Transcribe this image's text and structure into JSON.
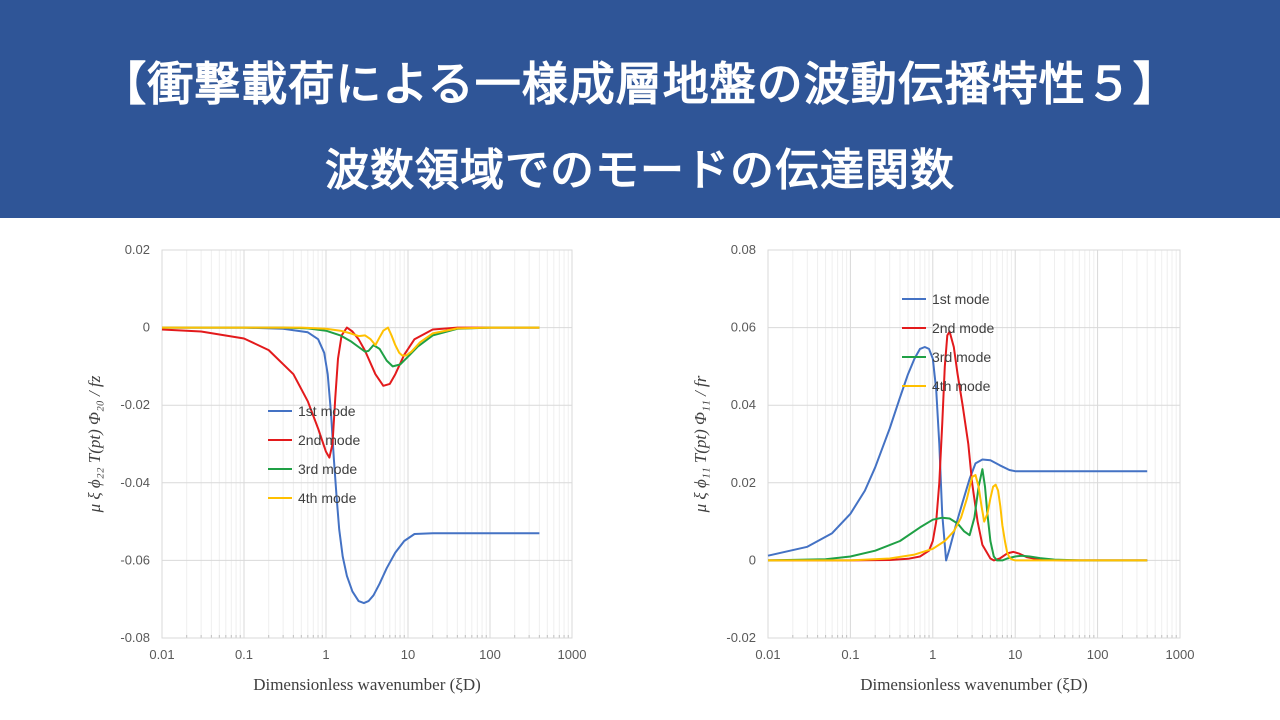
{
  "header": {
    "title_line1": "【衝撃載荷による一様成層地盤の波動伝播特性５】",
    "title_line2": "波数領域でのモードの伝達関数"
  },
  "colors": {
    "banner": "#2f5597",
    "series": [
      "#4472c4",
      "#e31a1c",
      "#1fa045",
      "#ffc000"
    ]
  },
  "chart_data": [
    {
      "type": "line",
      "xscale": "log",
      "xlim": [
        0.01,
        1000
      ],
      "ylim": [
        -0.08,
        0.02
      ],
      "xticks": [
        0.01,
        0.1,
        1,
        10,
        100,
        1000
      ],
      "xtick_labels": [
        "0.01",
        "0.1",
        "1",
        "10",
        "100",
        "1000"
      ],
      "yticks": [
        0.02,
        0,
        -0.02,
        -0.04,
        -0.06,
        -0.08
      ],
      "ytick_labels": [
        "0.02",
        "0",
        "-0.02",
        "-0.04",
        "-0.06",
        "-0.08"
      ],
      "xlabel": "Dimensionless wavenumber (ξD)",
      "ylabel": "μ ξ ϕ₂₂ T(pt) Φ₂₀ / fz",
      "legend_position": "lower-right",
      "grid": true,
      "series": [
        {
          "name": "1st mode",
          "x": [
            0.01,
            0.1,
            0.3,
            0.6,
            0.8,
            0.95,
            1.05,
            1.15,
            1.25,
            1.35,
            1.45,
            1.6,
            1.8,
            2.1,
            2.5,
            2.9,
            3.3,
            3.8,
            4.5,
            5.5,
            7,
            9,
            12,
            20,
            50,
            400
          ],
          "y": [
            0,
            0,
            -0.0003,
            -0.0012,
            -0.003,
            -0.0065,
            -0.012,
            -0.022,
            -0.034,
            -0.044,
            -0.052,
            -0.059,
            -0.064,
            -0.068,
            -0.0705,
            -0.071,
            -0.0705,
            -0.069,
            -0.066,
            -0.062,
            -0.058,
            -0.055,
            -0.0532,
            -0.053,
            -0.053,
            -0.053
          ]
        },
        {
          "name": "2nd mode",
          "x": [
            0.01,
            0.03,
            0.1,
            0.2,
            0.4,
            0.6,
            0.8,
            1.0,
            1.1,
            1.2,
            1.3,
            1.4,
            1.55,
            1.8,
            2.1,
            2.5,
            3,
            4,
            5,
            6,
            7,
            9,
            12,
            20,
            40,
            100,
            400
          ],
          "y": [
            -0.0005,
            -0.001,
            -0.0028,
            -0.0058,
            -0.012,
            -0.019,
            -0.026,
            -0.032,
            -0.0335,
            -0.03,
            -0.018,
            -0.008,
            -0.002,
            0,
            -0.001,
            -0.003,
            -0.006,
            -0.012,
            -0.015,
            -0.0145,
            -0.012,
            -0.007,
            -0.003,
            -0.0005,
            0,
            0,
            0
          ]
        },
        {
          "name": "3rd mode",
          "x": [
            0.01,
            0.1,
            0.3,
            0.6,
            1.0,
            1.5,
            2.0,
            2.5,
            3.0,
            3.3,
            3.8,
            4.5,
            5.5,
            6.5,
            8,
            10,
            13,
            20,
            40,
            100,
            400
          ],
          "y": [
            0,
            0,
            0,
            -0.0002,
            -0.0008,
            -0.002,
            -0.0035,
            -0.005,
            -0.0062,
            -0.006,
            -0.0045,
            -0.0055,
            -0.0085,
            -0.01,
            -0.0095,
            -0.0075,
            -0.005,
            -0.002,
            -0.0003,
            0,
            0
          ]
        },
        {
          "name": "4th mode",
          "x": [
            0.01,
            0.1,
            0.5,
            1.0,
            1.5,
            2.0,
            2.5,
            3.0,
            3.5,
            4.0,
            4.5,
            5.0,
            5.7,
            6.3,
            7.0,
            7.8,
            8.5,
            9.5,
            11,
            14,
            20,
            40,
            100,
            400
          ],
          "y": [
            0,
            0,
            0,
            -0.0003,
            -0.0008,
            -0.0015,
            -0.0022,
            -0.002,
            -0.003,
            -0.0045,
            -0.0025,
            -0.0008,
            0,
            -0.002,
            -0.0045,
            -0.0065,
            -0.0072,
            -0.0072,
            -0.0062,
            -0.0038,
            -0.0015,
            -0.0002,
            0,
            0
          ]
        }
      ]
    },
    {
      "type": "line",
      "xscale": "log",
      "xlim": [
        0.01,
        1000
      ],
      "ylim": [
        -0.02,
        0.08
      ],
      "xticks": [
        0.01,
        0.1,
        1,
        10,
        100,
        1000
      ],
      "xtick_labels": [
        "0.01",
        "0.1",
        "1",
        "10",
        "100",
        "1000"
      ],
      "yticks": [
        0.08,
        0.06,
        0.04,
        0.02,
        0,
        -0.02
      ],
      "ytick_labels": [
        "0.08",
        "0.06",
        "0.04",
        "0.02",
        "0",
        "-0.02"
      ],
      "xlabel": "Dimensionless wavenumber (ξD)",
      "ylabel": "μ ξ ϕ₁₁ T(pt) Φ₁₁ / fr",
      "legend_position": "upper-right",
      "grid": true,
      "series": [
        {
          "name": "1st mode",
          "x": [
            0.01,
            0.03,
            0.06,
            0.1,
            0.15,
            0.2,
            0.3,
            0.4,
            0.5,
            0.6,
            0.7,
            0.8,
            0.9,
            1.0,
            1.1,
            1.2,
            1.3,
            1.45,
            1.6,
            1.9,
            2.3,
            2.8,
            3.3,
            4.0,
            5.0,
            6.5,
            8.5,
            10,
            15,
            30,
            100,
            400
          ],
          "y": [
            0.0012,
            0.0035,
            0.007,
            0.012,
            0.018,
            0.024,
            0.034,
            0.042,
            0.048,
            0.052,
            0.0545,
            0.055,
            0.0545,
            0.052,
            0.044,
            0.03,
            0.012,
            0,
            0.003,
            0.009,
            0.015,
            0.021,
            0.025,
            0.026,
            0.0258,
            0.0245,
            0.0233,
            0.023,
            0.023,
            0.023,
            0.023,
            0.023
          ]
        },
        {
          "name": "2nd mode",
          "x": [
            0.01,
            0.1,
            0.3,
            0.5,
            0.7,
            0.9,
            1.0,
            1.1,
            1.2,
            1.3,
            1.4,
            1.5,
            1.6,
            1.8,
            2.0,
            2.3,
            2.7,
            3.0,
            3.5,
            4.0,
            5.0,
            5.5,
            6.5,
            8.0,
            9.5,
            11,
            14,
            20,
            40,
            100,
            400
          ],
          "y": [
            0,
            0,
            0.0001,
            0.0004,
            0.001,
            0.0025,
            0.005,
            0.01,
            0.02,
            0.035,
            0.05,
            0.058,
            0.059,
            0.055,
            0.048,
            0.04,
            0.03,
            0.02,
            0.01,
            0.004,
            0.0005,
            0,
            0.0005,
            0.0018,
            0.0022,
            0.0018,
            0.0008,
            0.0002,
            0,
            0,
            0
          ]
        },
        {
          "name": "3rd mode",
          "x": [
            0.01,
            0.05,
            0.1,
            0.2,
            0.4,
            0.7,
            1.0,
            1.3,
            1.6,
            2.0,
            2.4,
            2.8,
            3.2,
            3.6,
            4.0,
            4.3,
            4.6,
            5.0,
            5.5,
            6.0,
            7,
            8,
            10,
            12,
            15,
            20,
            30,
            60,
            400
          ],
          "y": [
            0,
            0.0003,
            0.001,
            0.0025,
            0.005,
            0.0085,
            0.0105,
            0.011,
            0.0108,
            0.0095,
            0.0075,
            0.0065,
            0.011,
            0.019,
            0.0235,
            0.019,
            0.012,
            0.005,
            0.001,
            0,
            0,
            0.0005,
            0.001,
            0.0012,
            0.001,
            0.0006,
            0.0002,
            0,
            0
          ]
        },
        {
          "name": "4th mode",
          "x": [
            0.01,
            0.1,
            0.3,
            0.6,
            1.0,
            1.4,
            1.8,
            2.2,
            2.6,
            3.0,
            3.3,
            3.6,
            3.9,
            4.2,
            4.6,
            5.0,
            5.4,
            5.8,
            6.2,
            6.6,
            7.0,
            7.5,
            8.0,
            8.5,
            9.0,
            10,
            12,
            15,
            20,
            40,
            100,
            400
          ],
          "y": [
            0,
            0,
            0.0005,
            0.0015,
            0.003,
            0.005,
            0.0075,
            0.011,
            0.016,
            0.0215,
            0.022,
            0.019,
            0.014,
            0.01,
            0.012,
            0.016,
            0.019,
            0.0195,
            0.018,
            0.014,
            0.009,
            0.005,
            0.002,
            0.0008,
            0.0003,
            0,
            0,
            0,
            0,
            0,
            0,
            0
          ]
        }
      ]
    }
  ]
}
